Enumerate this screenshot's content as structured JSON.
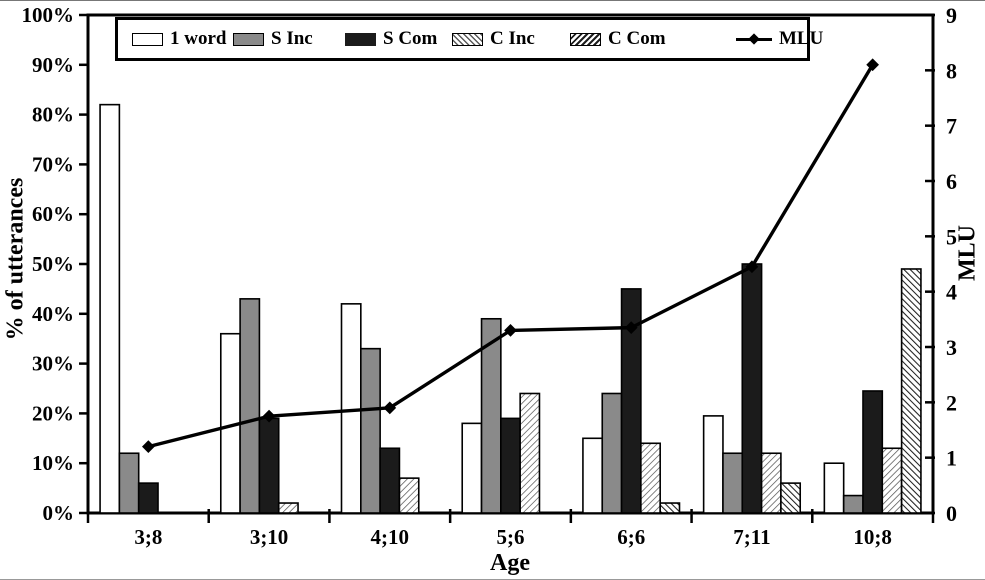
{
  "axes": {
    "left_title": "% of utterances",
    "right_title": "MLU",
    "x_title": "Age"
  },
  "legend": {
    "items": [
      {
        "label": "1 word",
        "swatch": "white"
      },
      {
        "label": "S Inc",
        "swatch": "gray"
      },
      {
        "label": "S Com",
        "swatch": "black"
      },
      {
        "label": "C Inc",
        "swatch": "hatch-light"
      },
      {
        "label": "C Com",
        "swatch": "hatch-dark"
      },
      {
        "label": "MLU",
        "swatch": "line-diamond"
      }
    ]
  },
  "colors": {
    "bar_white": "#ffffff",
    "bar_gray": "#8a8a8a",
    "bar_black": "#1b1b1b",
    "hatch_light_line": "#5a5a5a",
    "hatch_dark_line": "#1e1e1e",
    "line": "#000000",
    "axis": "#000000"
  },
  "chart_data": {
    "type": "bar+line",
    "title": "",
    "xlabel": "Age",
    "ylabel_left": "% of utterances",
    "ylabel_right": "MLU",
    "categories": [
      "3;8",
      "3;10",
      "4;10",
      "5;6",
      "6;6",
      "7;11",
      "10;8"
    ],
    "bar_series": [
      {
        "name": "1 word",
        "style": "white",
        "values": [
          82,
          36,
          42,
          18,
          15,
          19.5,
          10
        ]
      },
      {
        "name": "S Inc",
        "style": "gray",
        "values": [
          12,
          43,
          33,
          39,
          24,
          12,
          3.5
        ]
      },
      {
        "name": "S Com",
        "style": "black",
        "values": [
          6,
          19,
          13,
          19,
          45,
          50,
          24.5
        ]
      },
      {
        "name": "C Inc",
        "style": "hatch-light",
        "values": [
          0,
          2,
          7,
          24,
          14,
          12,
          13
        ]
      },
      {
        "name": "C Com",
        "style": "hatch-dark",
        "values": [
          0,
          0,
          0,
          0,
          2,
          6,
          49
        ]
      }
    ],
    "line_series": {
      "name": "MLU",
      "axis": "right",
      "marker": "diamond",
      "values": [
        1.2,
        1.75,
        1.9,
        3.3,
        3.35,
        4.45,
        8.1
      ]
    },
    "y_left": {
      "min": 0,
      "max": 100,
      "step": 10,
      "tick_labels": [
        "0%",
        "10%",
        "20%",
        "30%",
        "40%",
        "50%",
        "60%",
        "70%",
        "80%",
        "90%",
        "100%"
      ]
    },
    "y_right": {
      "min": 0,
      "max": 9,
      "step": 1,
      "tick_labels": [
        "0",
        "1",
        "2",
        "3",
        "4",
        "5",
        "6",
        "7",
        "8",
        "9"
      ]
    },
    "grid": false,
    "legend_position": "top"
  }
}
